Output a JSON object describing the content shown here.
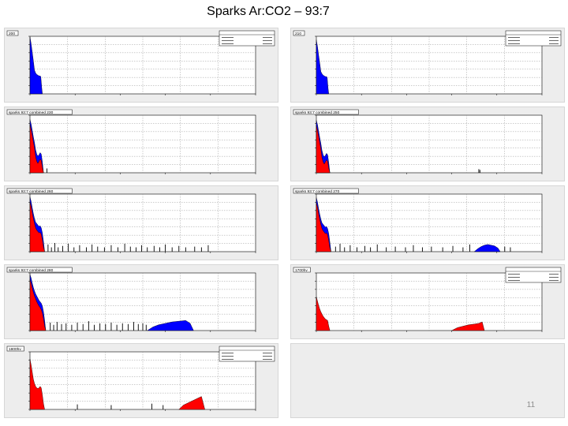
{
  "page": {
    "title": "Sparks  Ar:CO2 – 93:7",
    "page_number": "11"
  },
  "colors": {
    "panel_bg": "#ededed",
    "frame_bg": "#ffffff",
    "grid": "#9a9a9a",
    "blue": "#0000ff",
    "red": "#ff0000",
    "black": "#000000"
  },
  "chart_data": [
    {
      "type": "area",
      "log_y": true,
      "grid": true,
      "stats_box": true,
      "label_tag": "200",
      "series": [
        {
          "color": "#0000ff",
          "x": [
            0,
            5,
            10,
            15,
            20,
            25,
            30,
            35,
            40,
            45,
            48,
            52,
            55
          ],
          "y": [
            7.9,
            7.0,
            5.8,
            4.6,
            3.3,
            2.9,
            2.7,
            2.6,
            2.5,
            2.5,
            2.4,
            0.9,
            0
          ]
        }
      ],
      "spikes": []
    },
    {
      "type": "area",
      "log_y": true,
      "grid": true,
      "stats_box": true,
      "label_tag": "210",
      "series": [
        {
          "color": "#0000ff",
          "x": [
            0,
            5,
            10,
            15,
            20,
            25,
            30,
            35,
            40,
            45,
            48,
            52,
            55
          ],
          "y": [
            7.5,
            6.6,
            5.4,
            4.3,
            3.1,
            2.8,
            2.6,
            2.5,
            2.4,
            2.4,
            2.3,
            0.8,
            0
          ]
        }
      ],
      "spikes": []
    },
    {
      "type": "area",
      "log_y": true,
      "grid": true,
      "stats_box": false,
      "label_tag": "sparks  93:7  combined  230",
      "series": [
        {
          "color": "#0000ff",
          "x": [
            0,
            5,
            10,
            15,
            20,
            25,
            30,
            35,
            40,
            45,
            50,
            55,
            60
          ],
          "y": [
            7.4,
            6.8,
            5.9,
            5.0,
            4.2,
            3.2,
            2.6,
            2.3,
            2.5,
            2.8,
            2.6,
            1.5,
            0
          ]
        },
        {
          "color": "#ff0000",
          "x": [
            0,
            5,
            10,
            15,
            20,
            25,
            30,
            35,
            40,
            45,
            50,
            55,
            60
          ],
          "y": [
            6.7,
            6.0,
            5.2,
            4.3,
            3.4,
            2.2,
            1.6,
            1.3,
            1.6,
            1.9,
            1.7,
            0.7,
            0
          ]
        }
      ],
      "spikes": [
        {
          "x": 75,
          "y": 0.6
        }
      ]
    },
    {
      "type": "area",
      "log_y": true,
      "grid": true,
      "stats_box": false,
      "label_tag": "sparks  93:7  combined  250",
      "series": [
        {
          "color": "#0000ff",
          "x": [
            0,
            5,
            10,
            15,
            20,
            25,
            30,
            35,
            40,
            45,
            50,
            55,
            60
          ],
          "y": [
            7.3,
            6.7,
            5.8,
            4.9,
            4.1,
            3.1,
            2.5,
            2.2,
            2.4,
            2.7,
            2.5,
            1.4,
            0
          ]
        },
        {
          "color": "#ff0000",
          "x": [
            0,
            5,
            10,
            15,
            20,
            25,
            30,
            35,
            40,
            45,
            50,
            55,
            60
          ],
          "y": [
            6.6,
            5.9,
            5.1,
            4.2,
            3.3,
            2.1,
            1.5,
            1.2,
            1.5,
            1.8,
            1.6,
            0.6,
            0
          ]
        }
      ],
      "spikes": [
        {
          "x": 720,
          "y": 0.5
        },
        {
          "x": 725,
          "y": 0.4
        }
      ]
    },
    {
      "type": "area",
      "log_y": true,
      "grid": true,
      "stats_box": false,
      "label_tag": "sparks  93:7  combined  260",
      "series": [
        {
          "color": "#0000ff",
          "x": [
            0,
            5,
            10,
            15,
            20,
            25,
            30,
            35,
            40,
            45,
            50,
            55,
            60,
            65
          ],
          "y": [
            7.6,
            7.0,
            6.1,
            5.3,
            4.6,
            4.1,
            3.9,
            3.7,
            3.5,
            3.6,
            3.3,
            2.6,
            1.4,
            0
          ]
        },
        {
          "color": "#ff0000",
          "x": [
            0,
            5,
            10,
            15,
            20,
            25,
            30,
            35,
            40,
            45,
            50,
            55,
            60,
            65
          ],
          "y": [
            6.9,
            6.3,
            5.4,
            4.6,
            3.9,
            3.3,
            3.0,
            2.8,
            2.6,
            2.7,
            2.4,
            1.6,
            0.6,
            0
          ]
        }
      ],
      "spikes": [
        {
          "x": 80,
          "y": 1.0
        },
        {
          "x": 95,
          "y": 0.6
        },
        {
          "x": 110,
          "y": 1.2
        },
        {
          "x": 125,
          "y": 0.6
        },
        {
          "x": 145,
          "y": 0.8
        },
        {
          "x": 170,
          "y": 1.1
        },
        {
          "x": 195,
          "y": 0.6
        },
        {
          "x": 220,
          "y": 0.9
        },
        {
          "x": 250,
          "y": 0.6
        },
        {
          "x": 275,
          "y": 1.0
        },
        {
          "x": 300,
          "y": 0.7
        },
        {
          "x": 330,
          "y": 0.6
        },
        {
          "x": 360,
          "y": 0.9
        },
        {
          "x": 390,
          "y": 0.6
        },
        {
          "x": 420,
          "y": 1.1
        },
        {
          "x": 445,
          "y": 0.7
        },
        {
          "x": 470,
          "y": 0.6
        },
        {
          "x": 495,
          "y": 0.9
        },
        {
          "x": 520,
          "y": 0.6
        },
        {
          "x": 550,
          "y": 0.8
        },
        {
          "x": 575,
          "y": 0.6
        },
        {
          "x": 600,
          "y": 1.0
        },
        {
          "x": 630,
          "y": 0.6
        },
        {
          "x": 660,
          "y": 0.8
        },
        {
          "x": 690,
          "y": 0.6
        },
        {
          "x": 730,
          "y": 0.7
        },
        {
          "x": 760,
          "y": 0.6
        },
        {
          "x": 790,
          "y": 0.9
        }
      ]
    },
    {
      "type": "area",
      "log_y": true,
      "grid": true,
      "stats_box": false,
      "label_tag": "sparks  93:7  combined  270",
      "series": [
        {
          "color": "#0000ff",
          "x": [
            0,
            5,
            10,
            15,
            20,
            25,
            30,
            35,
            40,
            45,
            50,
            55,
            60,
            65
          ],
          "y": [
            7.5,
            6.9,
            6.0,
            5.2,
            4.5,
            4.0,
            3.8,
            3.6,
            3.4,
            3.5,
            3.2,
            2.5,
            1.3,
            0
          ]
        },
        {
          "color": "#ff0000",
          "x": [
            0,
            5,
            10,
            15,
            20,
            25,
            30,
            35,
            40,
            45,
            50,
            55,
            60,
            65
          ],
          "y": [
            6.8,
            6.2,
            5.3,
            4.5,
            3.8,
            3.2,
            2.9,
            2.7,
            2.5,
            2.6,
            2.3,
            1.5,
            0.5,
            0
          ]
        },
        {
          "color": "#0000ff",
          "x": [
            700,
            715,
            730,
            745,
            760,
            775,
            790,
            805,
            815
          ],
          "y": [
            0,
            0.4,
            0.7,
            0.9,
            1.0,
            0.9,
            0.8,
            0.5,
            0
          ]
        }
      ],
      "spikes": [
        {
          "x": 85,
          "y": 0.7
        },
        {
          "x": 105,
          "y": 1.1
        },
        {
          "x": 125,
          "y": 0.6
        },
        {
          "x": 150,
          "y": 0.9
        },
        {
          "x": 180,
          "y": 0.6
        },
        {
          "x": 215,
          "y": 0.8
        },
        {
          "x": 240,
          "y": 0.6
        },
        {
          "x": 270,
          "y": 1.0
        },
        {
          "x": 310,
          "y": 0.6
        },
        {
          "x": 350,
          "y": 0.7
        },
        {
          "x": 395,
          "y": 0.6
        },
        {
          "x": 430,
          "y": 0.9
        },
        {
          "x": 470,
          "y": 0.6
        },
        {
          "x": 510,
          "y": 0.7
        },
        {
          "x": 560,
          "y": 0.6
        },
        {
          "x": 605,
          "y": 0.8
        },
        {
          "x": 650,
          "y": 0.6
        },
        {
          "x": 680,
          "y": 1.0
        },
        {
          "x": 835,
          "y": 0.7
        },
        {
          "x": 860,
          "y": 0.6
        }
      ]
    },
    {
      "type": "area",
      "log_y": true,
      "grid": true,
      "stats_box": false,
      "label_tag": "sparks  93:7  combined  280",
      "series": [
        {
          "color": "#0000ff",
          "x": [
            0,
            5,
            10,
            15,
            20,
            25,
            30,
            35,
            40,
            45,
            50,
            55,
            60,
            65,
            70
          ],
          "y": [
            7.8,
            7.3,
            6.6,
            6.0,
            5.5,
            5.1,
            4.8,
            4.5,
            4.2,
            4.0,
            3.8,
            3.4,
            2.6,
            1.4,
            0
          ]
        },
        {
          "color": "#ff0000",
          "x": [
            0,
            5,
            10,
            15,
            20,
            25,
            30,
            35,
            40,
            45,
            50,
            55,
            60,
            65,
            70
          ],
          "y": [
            7.1,
            6.6,
            5.9,
            5.3,
            4.8,
            4.4,
            4.0,
            3.7,
            3.4,
            3.2,
            2.9,
            2.4,
            1.6,
            0.6,
            0
          ]
        },
        {
          "color": "#0000ff",
          "x": [
            520,
            545,
            570,
            600,
            630,
            660,
            690,
            710,
            725
          ],
          "y": [
            0,
            0.5,
            0.8,
            1.0,
            1.2,
            1.3,
            1.4,
            1.0,
            0
          ]
        }
      ],
      "spikes": [
        {
          "x": 90,
          "y": 1.1
        },
        {
          "x": 105,
          "y": 0.8
        },
        {
          "x": 120,
          "y": 1.2
        },
        {
          "x": 140,
          "y": 0.9
        },
        {
          "x": 160,
          "y": 1.0
        },
        {
          "x": 185,
          "y": 0.8
        },
        {
          "x": 210,
          "y": 1.1
        },
        {
          "x": 235,
          "y": 0.9
        },
        {
          "x": 260,
          "y": 1.3
        },
        {
          "x": 285,
          "y": 0.8
        },
        {
          "x": 310,
          "y": 1.0
        },
        {
          "x": 335,
          "y": 0.9
        },
        {
          "x": 360,
          "y": 1.1
        },
        {
          "x": 385,
          "y": 0.8
        },
        {
          "x": 410,
          "y": 1.0
        },
        {
          "x": 435,
          "y": 0.9
        },
        {
          "x": 460,
          "y": 1.2
        },
        {
          "x": 480,
          "y": 0.9
        },
        {
          "x": 500,
          "y": 1.0
        },
        {
          "x": 515,
          "y": 0.8
        }
      ]
    },
    {
      "type": "area",
      "log_y": true,
      "grid": true,
      "stats_box": true,
      "label_tag": "1700hv",
      "series": [
        {
          "color": "#ff0000",
          "x": [
            0,
            5,
            10,
            15,
            20,
            25,
            30,
            35,
            40,
            45,
            50,
            55,
            60
          ],
          "y": [
            4.7,
            4.1,
            3.5,
            3.0,
            2.6,
            2.3,
            2.0,
            1.8,
            1.6,
            1.5,
            1.4,
            0.6,
            0
          ]
        },
        {
          "color": "#ff0000",
          "x": [
            600,
            625,
            650,
            675,
            700,
            720,
            735,
            745
          ],
          "y": [
            0,
            0.4,
            0.6,
            0.8,
            0.9,
            1.0,
            1.2,
            0
          ]
        }
      ],
      "spikes": []
    },
    {
      "type": "area",
      "log_y": true,
      "grid": true,
      "stats_box": true,
      "label_tag": "1800hv",
      "series": [
        {
          "color": "#ff0000",
          "x": [
            0,
            5,
            10,
            15,
            20,
            25,
            30,
            35,
            40,
            45,
            50,
            55,
            60,
            65
          ],
          "y": [
            7.0,
            6.2,
            5.2,
            4.2,
            3.6,
            3.2,
            3.0,
            2.9,
            3.0,
            3.2,
            3.0,
            2.0,
            0.8,
            0
          ]
        },
        {
          "color": "#ff0000",
          "x": [
            660,
            680,
            700,
            720,
            740,
            760,
            775
          ],
          "y": [
            0,
            0.6,
            0.9,
            1.2,
            1.5,
            1.8,
            0
          ]
        }
      ],
      "spikes": [
        {
          "x": 210,
          "y": 0.7
        },
        {
          "x": 360,
          "y": 0.6
        },
        {
          "x": 540,
          "y": 0.8
        },
        {
          "x": 590,
          "y": 0.6
        }
      ]
    }
  ]
}
